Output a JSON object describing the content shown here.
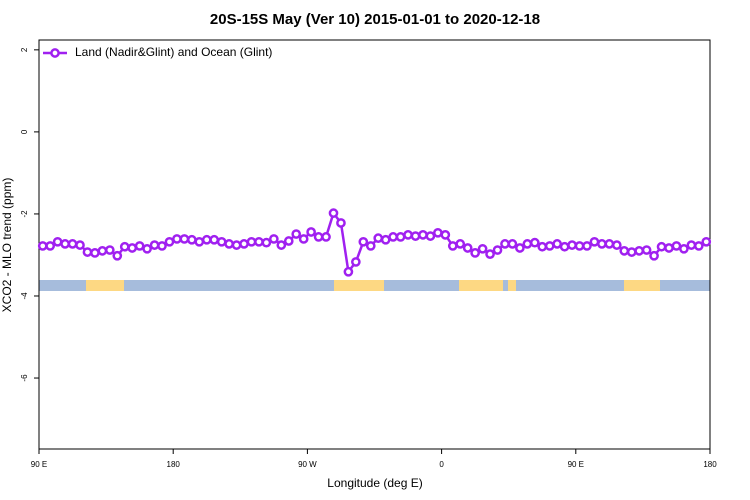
{
  "chart_data": {
    "type": "line",
    "title": "20S-15S May (Ver 10)   2015-01-01 to 2020-12-18",
    "x_label": "Longitude (deg E)",
    "y_label": "XCO2 - MLO trend (ppm)",
    "xlim": [
      90,
      540
    ],
    "ylim": [
      -7.73,
      2.24
    ],
    "xticks": [
      {
        "value": 90,
        "label": "90 E"
      },
      180,
      {
        "value": 270,
        "label": "90 W"
      },
      {
        "value": 360,
        "label": "0"
      },
      {
        "value": 450,
        "label": "90 E"
      },
      {
        "value": 540,
        "label": "180"
      }
    ],
    "yticks": [
      -6,
      -4,
      -2,
      0,
      2
    ],
    "legend": "top-left",
    "x": [
      92.5,
      97.5,
      102.5,
      107.5,
      112.5,
      117.5,
      122.5,
      127.5,
      132.5,
      137.5,
      142.5,
      147.5,
      152.5,
      157.5,
      162.5,
      167.5,
      172.5,
      177.5,
      182.5,
      187.5,
      192.5,
      197.5,
      202.5,
      207.5,
      212.5,
      217.5,
      222.5,
      227.5,
      232.5,
      237.5,
      242.5,
      247.5,
      252.5,
      257.5,
      262.5,
      267.5,
      272.5,
      277.5,
      282.5,
      287.5,
      292.5,
      297.5,
      302.5,
      307.5,
      312.5,
      317.5,
      322.5,
      327.5,
      332.5,
      337.5,
      342.5,
      347.5,
      352.5,
      357.5,
      362.5,
      367.5,
      372.5,
      377.5,
      382.5,
      387.5,
      392.5,
      397.5,
      402.5,
      407.5,
      412.5,
      417.5,
      422.5,
      427.5,
      432.5,
      437.5,
      442.5,
      447.5,
      452.5,
      457.5,
      462.5,
      467.5,
      472.5,
      477.5,
      482.5,
      487.5,
      492.5,
      497.5,
      502.5,
      507.5,
      512.5,
      517.5,
      522.5,
      527.5,
      532.5,
      537.5
    ],
    "series": [
      {
        "name": "Land (Nadir&Glint) and Ocean (Glint)",
        "color": "#a020f0",
        "values": [
          -2.78,
          -2.78,
          -2.68,
          -2.73,
          -2.73,
          -2.76,
          -2.93,
          -2.95,
          -2.9,
          -2.88,
          -3.02,
          -2.8,
          -2.83,
          -2.78,
          -2.85,
          -2.76,
          -2.78,
          -2.68,
          -2.61,
          -2.61,
          -2.63,
          -2.68,
          -2.63,
          -2.63,
          -2.68,
          -2.73,
          -2.76,
          -2.73,
          -2.68,
          -2.68,
          -2.7,
          -2.61,
          -2.76,
          -2.66,
          -2.49,
          -2.61,
          -2.44,
          -2.56,
          -2.56,
          -1.98,
          -2.22,
          -3.41,
          -3.17,
          -2.68,
          -2.78,
          -2.59,
          -2.63,
          -2.56,
          -2.56,
          -2.51,
          -2.54,
          -2.51,
          -2.54,
          -2.46,
          -2.51,
          -2.78,
          -2.73,
          -2.83,
          -2.95,
          -2.85,
          -2.98,
          -2.88,
          -2.73,
          -2.73,
          -2.83,
          -2.73,
          -2.7,
          -2.8,
          -2.78,
          -2.73,
          -2.8,
          -2.76,
          -2.78,
          -2.78,
          -2.68,
          -2.73,
          -2.73,
          -2.76,
          -2.9,
          -2.93,
          -2.9,
          -2.88,
          -3.02,
          -2.8,
          -2.83,
          -2.78,
          -2.85,
          -2.76,
          -2.78,
          -2.68
        ]
      }
    ]
  }
}
